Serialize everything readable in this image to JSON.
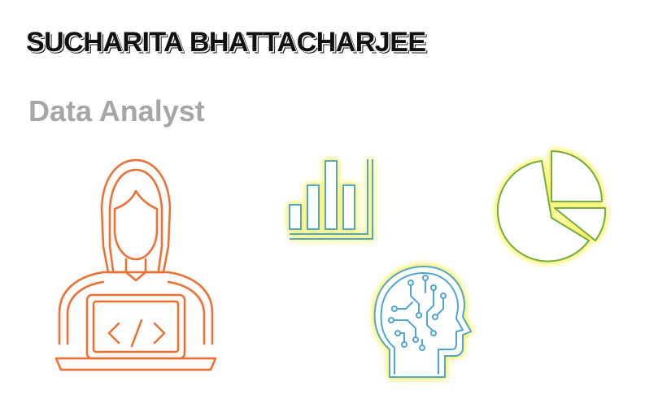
{
  "header": {
    "name": "SUCHARITA BHATTACHARJEE",
    "role": "Data Analyst"
  },
  "icons": [
    "person-with-laptop-icon",
    "code-brackets-icon",
    "bar-chart-icon",
    "pie-chart-icon",
    "ai-brain-head-icon"
  ],
  "colors": {
    "name_text": "#111111",
    "role_text": "#a6a6a6",
    "person_outline": "#e97132",
    "bar_chart_outline": "#4fa6d4",
    "pie_chart_outline": "#70ad47",
    "brain_outline": "#4fa6d4",
    "glow": "#fff04a"
  }
}
